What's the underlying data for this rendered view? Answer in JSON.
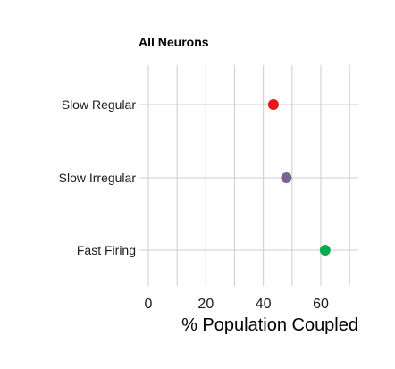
{
  "chart_data": {
    "type": "scatter",
    "title": "All Neurons",
    "xlabel": "% Population Coupled",
    "ylabel": "",
    "xlim": [
      -3,
      73
    ],
    "x_ticks": [
      "0",
      "20",
      "40",
      "60"
    ],
    "x_tick_values": [
      0,
      20,
      40,
      60
    ],
    "x_minor_gridlines": [
      10,
      30,
      50,
      70
    ],
    "grid": true,
    "categories": [
      "Slow Regular",
      "Slow Irregular",
      "Fast Firing"
    ],
    "points": [
      {
        "category": "Slow Regular",
        "x": 43.5,
        "color": "#e8141b"
      },
      {
        "category": "Slow Irregular",
        "x": 48,
        "color": "#7a6491"
      },
      {
        "category": "Fast Firing",
        "x": 61.5,
        "color": "#0aa84f"
      }
    ]
  }
}
